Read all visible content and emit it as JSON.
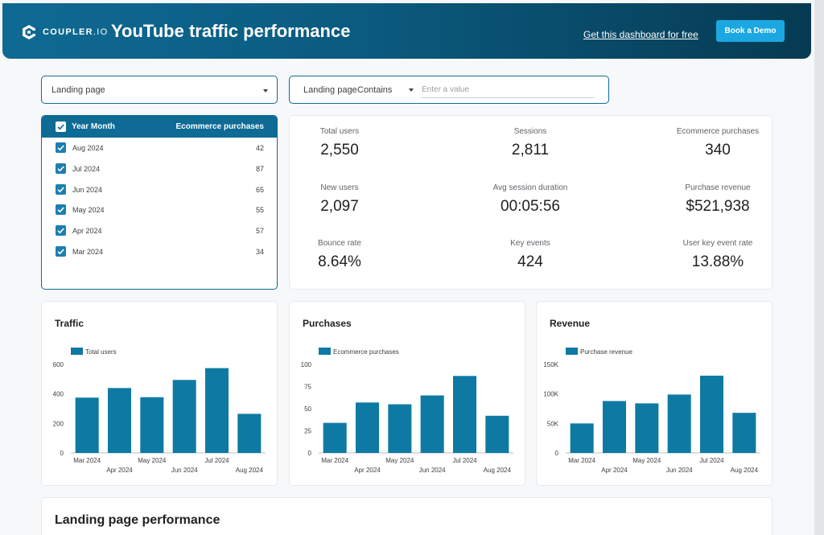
{
  "header": {
    "logo_text": "COUPLER",
    "logo_suffix": ".IO",
    "title": "YouTube traffic performance",
    "link_text": "Get this dashboard for free",
    "demo_button": "Book a Demo"
  },
  "filters": {
    "landing_select": "Landing page",
    "text_filter": {
      "label": "Landing page",
      "operator": "Contains",
      "placeholder": "Enter a value"
    }
  },
  "month_table": {
    "headers": [
      "Year Month",
      "Ecommerce purchases"
    ],
    "rows": [
      {
        "month": "Aug 2024",
        "value": "42"
      },
      {
        "month": "Jul 2024",
        "value": "87"
      },
      {
        "month": "Jun 2024",
        "value": "65"
      },
      {
        "month": "May 2024",
        "value": "55"
      },
      {
        "month": "Apr 2024",
        "value": "57"
      },
      {
        "month": "Mar 2024",
        "value": "34"
      }
    ]
  },
  "kpis": [
    {
      "label": "Total users",
      "value": "2,550"
    },
    {
      "label": "Sessions",
      "value": "2,811"
    },
    {
      "label": "Ecommerce purchases",
      "value": "340"
    },
    {
      "label": "New users",
      "value": "2,097"
    },
    {
      "label": "Avg session duration",
      "value": "00:05:56"
    },
    {
      "label": "Purchase revenue",
      "value": "$521,938"
    },
    {
      "label": "Bounce rate",
      "value": "8.64%"
    },
    {
      "label": "Key events",
      "value": "424"
    },
    {
      "label": "User key event rate",
      "value": "13.88%"
    }
  ],
  "colors": {
    "accent": "#0d6b95",
    "bar": "#0e7aa4",
    "brand_light": "#1ba8e2"
  },
  "chart_data": [
    {
      "type": "bar",
      "title": "Traffic",
      "legend": "Total users",
      "categories": [
        "Mar 2024",
        "Apr 2024",
        "May 2024",
        "Jun 2024",
        "Jul 2024",
        "Aug 2024"
      ],
      "values": [
        375,
        440,
        378,
        495,
        575,
        265
      ],
      "ylim": [
        0,
        600
      ],
      "yticks": [
        0,
        200,
        400,
        600
      ],
      "ytick_labels": [
        "0",
        "200",
        "400",
        "600"
      ]
    },
    {
      "type": "bar",
      "title": "Purchases",
      "legend": "Ecommerce purchases",
      "categories": [
        "Mar 2024",
        "Apr 2024",
        "May 2024",
        "Jun 2024",
        "Jul 2024",
        "Aug 2024"
      ],
      "values": [
        34,
        57,
        55,
        65,
        87,
        42
      ],
      "ylim": [
        0,
        100
      ],
      "yticks": [
        0,
        25,
        50,
        75,
        100
      ],
      "ytick_labels": [
        "0",
        "25",
        "50",
        "75",
        "100"
      ]
    },
    {
      "type": "bar",
      "title": "Revenue",
      "legend": "Purchase revenue",
      "categories": [
        "Mar 2024",
        "Apr 2024",
        "May 2024",
        "Jun 2024",
        "Jul 2024",
        "Aug 2024"
      ],
      "values": [
        50000,
        88000,
        84000,
        99000,
        131000,
        68000
      ],
      "ylim": [
        0,
        150000
      ],
      "yticks": [
        0,
        50000,
        100000,
        150000
      ],
      "ytick_labels": [
        "0",
        "50K",
        "100K",
        "150K"
      ]
    }
  ],
  "landing_section": {
    "title": "Landing page performance"
  }
}
